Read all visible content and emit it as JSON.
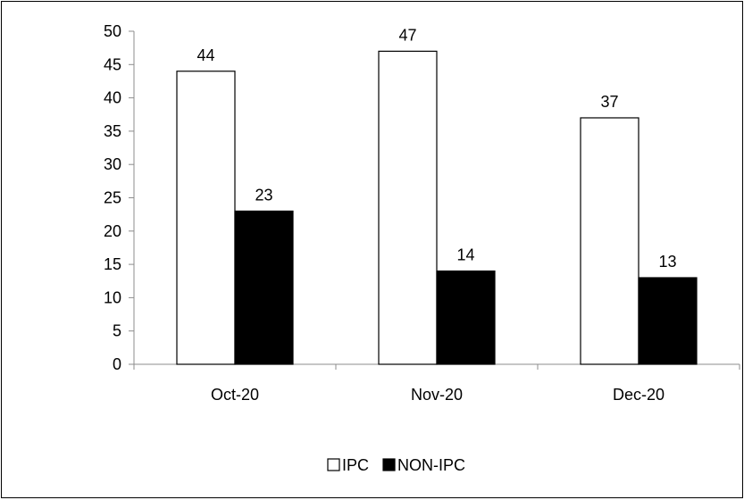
{
  "chart_data": {
    "type": "bar",
    "title": "",
    "xlabel": "",
    "ylabel": "",
    "categories": [
      "Oct-20",
      "Nov-20",
      "Dec-20"
    ],
    "series": [
      {
        "name": "IPC",
        "values": [
          44,
          47,
          37
        ],
        "color": "#ffffff",
        "stroke": "#000000"
      },
      {
        "name": "NON-IPC",
        "values": [
          23,
          14,
          13
        ],
        "color": "#000000",
        "stroke": "#000000"
      }
    ],
    "ylim": [
      0,
      50
    ],
    "yticks": [
      0,
      5,
      10,
      15,
      20,
      25,
      30,
      35,
      40,
      45,
      50
    ],
    "grid": false,
    "legend_position": "bottom-center",
    "data_labels": true
  }
}
